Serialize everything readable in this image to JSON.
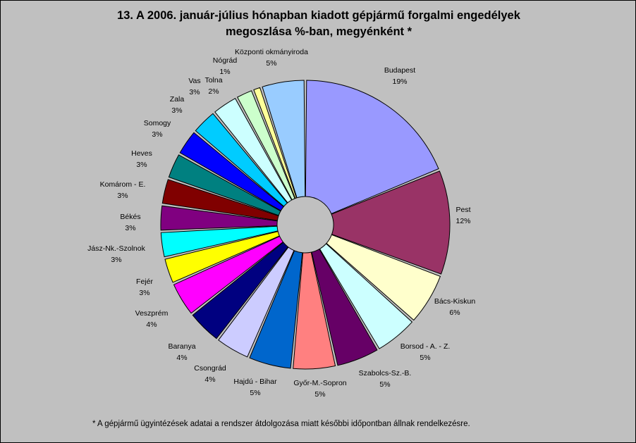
{
  "chart_data": {
    "type": "pie",
    "title_line1": "13. A  2006. január-július hónapban kiadott gépjármű forgalmi engedélyek",
    "title_line2": "megoszlása %-ban, megyénként *",
    "footnote": "* A gépjármű ügyintézések adatai a rendszer átdolgozása miatt későbbi időpontban állnak rendelkezésre.",
    "slices": [
      {
        "name": "Budapest",
        "value": 19,
        "label": "19%",
        "color": "#9999ff"
      },
      {
        "name": "Pest",
        "value": 12,
        "label": "12%",
        "color": "#993366"
      },
      {
        "name": "Bács-Kiskun",
        "value": 6,
        "label": "6%",
        "color": "#ffffcc"
      },
      {
        "name": "Borsod - A. - Z.",
        "value": 5,
        "label": "5%",
        "color": "#ccffff"
      },
      {
        "name": "Szabolcs-Sz.-B.",
        "value": 5,
        "label": "5%",
        "color": "#660066"
      },
      {
        "name": "Győr-M.-Sopron",
        "value": 5,
        "label": "5%",
        "color": "#ff8080"
      },
      {
        "name": "Hajdú - Bihar",
        "value": 5,
        "label": "5%",
        "color": "#0066cc"
      },
      {
        "name": "Csongrád",
        "value": 4,
        "label": "4%",
        "color": "#ccccff"
      },
      {
        "name": "Baranya",
        "value": 4,
        "label": "4%",
        "color": "#000080"
      },
      {
        "name": "Veszprém",
        "value": 4,
        "label": "4%",
        "color": "#ff00ff"
      },
      {
        "name": "Fejér",
        "value": 3,
        "label": "3%",
        "color": "#ffff00"
      },
      {
        "name": "Jász-Nk.-Szolnok",
        "value": 3,
        "label": "3%",
        "color": "#00ffff"
      },
      {
        "name": "Békés",
        "value": 3,
        "label": "3%",
        "color": "#800080"
      },
      {
        "name": "Komárom - E.",
        "value": 3,
        "label": "3%",
        "color": "#800000"
      },
      {
        "name": "Heves",
        "value": 3,
        "label": "3%",
        "color": "#008080"
      },
      {
        "name": "Somogy",
        "value": 3,
        "label": "3%",
        "color": "#0000ff"
      },
      {
        "name": "Zala",
        "value": 3,
        "label": "3%",
        "color": "#00ccff"
      },
      {
        "name": "Vas",
        "value": 3,
        "label": "3%",
        "color": "#ccffff"
      },
      {
        "name": "Tolna",
        "value": 2,
        "label": "2%",
        "color": "#ccffcc"
      },
      {
        "name": "Nógrád",
        "value": 1,
        "label": "1%",
        "color": "#ffff99"
      },
      {
        "name": "Központi okmányiroda",
        "value": 5,
        "label": "5%",
        "color": "#99ccff"
      }
    ]
  }
}
